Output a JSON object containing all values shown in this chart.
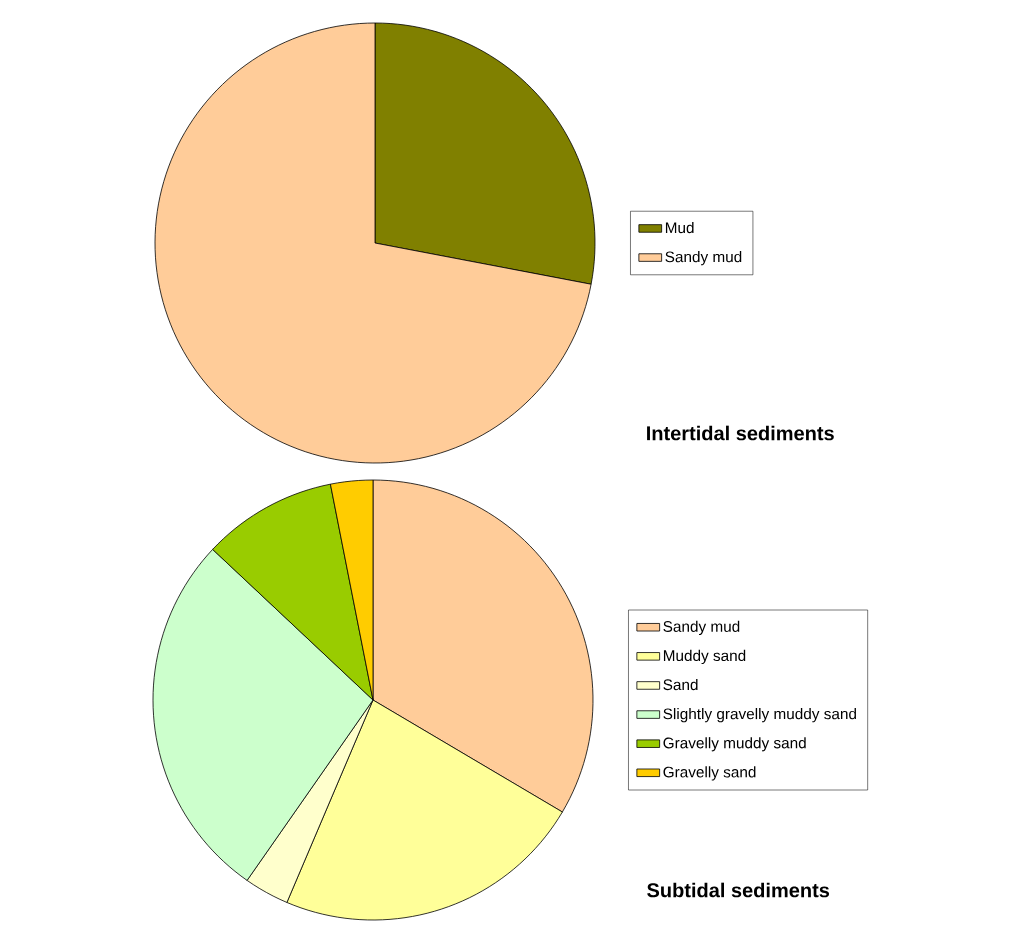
{
  "chart_data": [
    {
      "type": "pie",
      "title": "Intertidal sediments",
      "categories": [
        "Mud",
        "Sandy mud"
      ],
      "values": [
        28,
        72
      ],
      "colors": [
        "#808000",
        "#ffcc99"
      ],
      "legend": "right"
    },
    {
      "type": "pie",
      "title": "Subtidal sediments",
      "categories": [
        "Sandy mud",
        "Muddy sand",
        "Sand",
        "Slightly gravelly muddy sand",
        "Gravelly muddy sand",
        "Gravelly sand"
      ],
      "values": [
        33.5,
        22.9,
        3.3,
        27.3,
        9.9,
        3.1
      ],
      "colors": [
        "#ffcc99",
        "#ffff99",
        "#ffffcc",
        "#ccffcc",
        "#99cc00",
        "#ffcc00"
      ],
      "legend": "right"
    }
  ]
}
